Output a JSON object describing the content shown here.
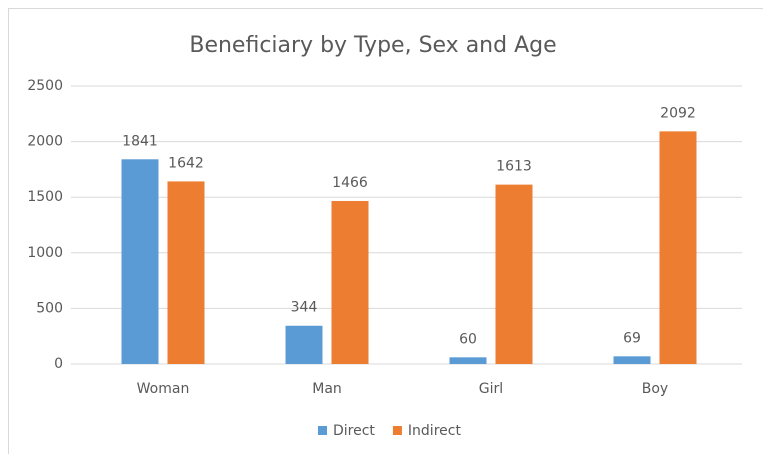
{
  "chart_data": {
    "type": "bar",
    "title": "Beneficiary by Type, Sex and Age",
    "categories": [
      "Woman",
      "Man",
      "Girl",
      "Boy"
    ],
    "series": [
      {
        "name": "Direct",
        "color": "#5b9bd5",
        "values": [
          1841,
          344,
          60,
          69
        ]
      },
      {
        "name": "Indirect",
        "color": "#ed7d31",
        "values": [
          1642,
          1466,
          1613,
          2092
        ]
      }
    ],
    "ylim": [
      0,
      2500
    ],
    "yticks": [
      0,
      500,
      1000,
      1500,
      2000,
      2500
    ],
    "grid": true,
    "legend": "bottom"
  }
}
